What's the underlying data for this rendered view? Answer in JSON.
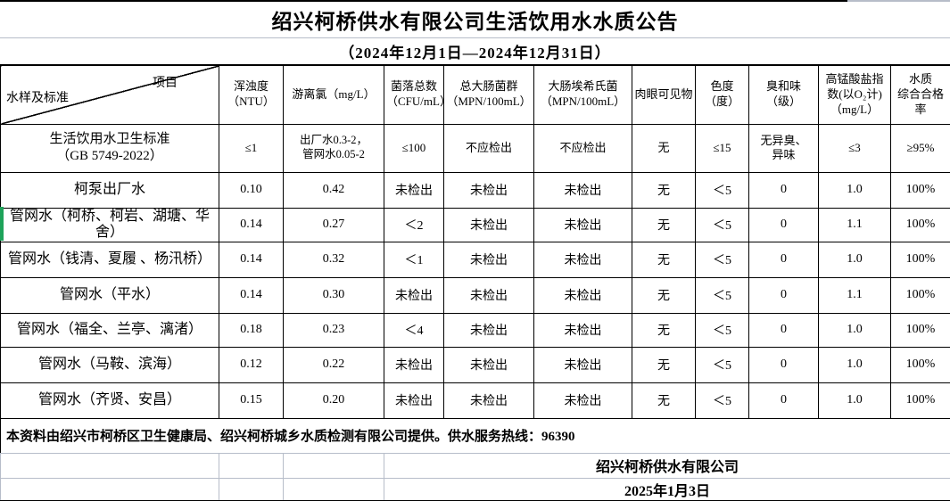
{
  "title": "绍兴柯桥供水有限公司生活饮用水水质公告",
  "subtitle": "（2024年12月1日—2024年12月31日）",
  "table": {
    "corner": {
      "left": "水样及标准",
      "right": "项目"
    },
    "columns": [
      "浑浊度\n（NTU）",
      "游离氯（mg/L）",
      "菌落总数\n（CFU/mL）",
      "总大肠菌群\n（MPN/100mL）",
      "大肠埃希氏菌\n（MPN/100mL）",
      "肉眼可见物",
      "色度\n（度）",
      "臭和味\n（级）",
      "高锰酸盐指\n数(以O₂计)\n（mg/L）",
      "水质\n综合合格率"
    ],
    "rows": [
      {
        "label": "生活饮用水卫生标准\n（GB 5749-2022）",
        "values": [
          "≤1",
          "出厂水0.3-2，\n管网水0.05-2",
          "≤100",
          "不应检出",
          "不应检出",
          "无",
          "≤15",
          "无异臭、\n异味",
          "≤3",
          "≥95%"
        ]
      },
      {
        "label": "柯泵出厂水",
        "values": [
          "0.10",
          "0.42",
          "未检出",
          "未检出",
          "未检出",
          "无",
          "＜5",
          "0",
          "1.0",
          "100%"
        ]
      },
      {
        "label": "管网水（柯桥、柯岩、湖塘、华舍）",
        "values": [
          "0.14",
          "0.27",
          "＜2",
          "未检出",
          "未检出",
          "无",
          "＜5",
          "0",
          "1.1",
          "100%"
        ]
      },
      {
        "label": "管网水（钱清、夏履 、杨汛桥）",
        "values": [
          "0.14",
          "0.32",
          "＜1",
          "未检出",
          "未检出",
          "无",
          "＜5",
          "0",
          "1.0",
          "100%"
        ]
      },
      {
        "label": "管网水（平水）",
        "values": [
          "0.14",
          "0.30",
          "未检出",
          "未检出",
          "未检出",
          "无",
          "＜5",
          "0",
          "1.1",
          "100%"
        ]
      },
      {
        "label": "管网水（福全、兰亭、漓渚）",
        "values": [
          "0.18",
          "0.23",
          "＜4",
          "未检出",
          "未检出",
          "无",
          "＜5",
          "0",
          "1.0",
          "100%"
        ]
      },
      {
        "label": "管网水（马鞍、滨海）",
        "values": [
          "0.12",
          "0.22",
          "未检出",
          "未检出",
          "未检出",
          "无",
          "＜5",
          "0",
          "1.0",
          "100%"
        ]
      },
      {
        "label": "管网水（齐贤、安昌）",
        "values": [
          "0.15",
          "0.20",
          "未检出",
          "未检出",
          "未检出",
          "无",
          "＜5",
          "0",
          "1.0",
          "100%"
        ]
      }
    ]
  },
  "footer": {
    "note": "本资料由绍兴市柯桥区卫生健康局、绍兴柯桥城乡水质检测有限公司提供。供水服务热线：96390",
    "company": "绍兴柯桥供水有限公司",
    "date": "2025年1月3日"
  },
  "colors": {
    "border_black": "#000000",
    "gridline": "#b7bdc9",
    "stripe_green": "#1ea35a",
    "text": "#000000",
    "background": "#ffffff"
  }
}
